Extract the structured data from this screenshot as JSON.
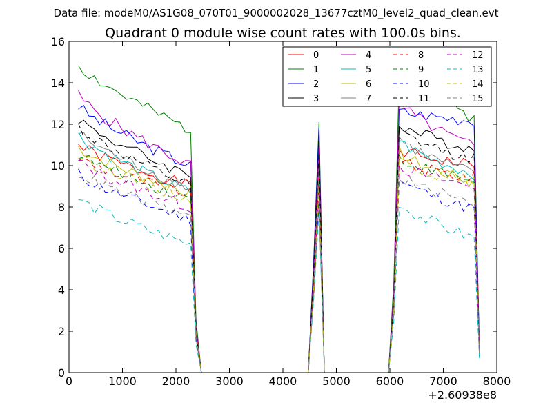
{
  "chart_data": {
    "type": "line",
    "suptitle": "Data file: modeM0/AS1G08_070T01_9000002028_13677cztM0_level2_quad_clean.evt",
    "title": "Quadrant 0 module wise count rates with 100.0s bins.",
    "xlabel": "",
    "ylabel": "",
    "xlim": [
      0,
      8000
    ],
    "ylim": [
      0,
      16
    ],
    "x_offset_label": "+2.60938e8",
    "xticks": [
      0,
      1000,
      2000,
      3000,
      4000,
      5000,
      6000,
      7000,
      8000
    ],
    "yticks": [
      0,
      2,
      4,
      6,
      8,
      10,
      12,
      14,
      16
    ],
    "legend_position": "top-right",
    "x": [
      175,
      275,
      375,
      475,
      575,
      675,
      775,
      875,
      975,
      1075,
      1175,
      1275,
      1375,
      1475,
      1575,
      1675,
      1775,
      1875,
      1975,
      2075,
      2175,
      2275,
      2375,
      2475,
      2575,
      2675,
      2775,
      2875,
      2975,
      3075,
      3175,
      3275,
      3375,
      3475,
      3575,
      3675,
      3775,
      3875,
      3975,
      4075,
      4175,
      4275,
      4375,
      4475,
      4575,
      4675,
      4775,
      4875,
      4975,
      5075,
      5175,
      5275,
      5375,
      5475,
      5575,
      5675,
      5775,
      5875,
      5975,
      6075,
      6175,
      6275,
      6375,
      6475,
      6575,
      6675,
      6775,
      6875,
      6975,
      7075,
      7175,
      7275,
      7375,
      7475,
      7575,
      7675
    ],
    "series": [
      {
        "name": "0",
        "color": "#ff0000",
        "dash": "solid",
        "start": 11.0,
        "end": 9.0,
        "end2": 10.0,
        "peak": 10.5
      },
      {
        "name": "1",
        "color": "#008000",
        "dash": "solid",
        "start": 14.9,
        "end": 11.7,
        "end2": 12.3,
        "peak": 12.1
      },
      {
        "name": "2",
        "color": "#0000ff",
        "dash": "solid",
        "start": 12.9,
        "end": 10.0,
        "end2": 12.2,
        "peak": 11.8
      },
      {
        "name": "3",
        "color": "#000000",
        "dash": "solid",
        "start": 12.3,
        "end": 9.5,
        "end2": 10.8,
        "peak": 11.2
      },
      {
        "name": "4",
        "color": "#bf00bf",
        "dash": "solid",
        "start": 13.4,
        "end": 10.0,
        "end2": 10.9,
        "peak": 10.9
      },
      {
        "name": "5",
        "color": "#00bfbf",
        "dash": "solid",
        "start": 11.5,
        "end": 8.7,
        "end2": 9.6,
        "peak": 9.9
      },
      {
        "name": "6",
        "color": "#bfbf00",
        "dash": "solid",
        "start": 10.9,
        "end": 8.7,
        "end2": 9.2,
        "peak": 9.6
      },
      {
        "name": "7",
        "color": "#808080",
        "dash": "solid",
        "start": 11.6,
        "end": 8.9,
        "end2": 9.6,
        "peak": 9.9
      },
      {
        "name": "8",
        "color": "#ff0000",
        "dash": "dashed",
        "start": 10.4,
        "end": 8.6,
        "end2": 9.4,
        "peak": 9.4
      },
      {
        "name": "9",
        "color": "#008000",
        "dash": "dashed",
        "start": 10.6,
        "end": 8.4,
        "end2": 9.3,
        "peak": 9.2
      },
      {
        "name": "10",
        "color": "#0000ff",
        "dash": "dashed",
        "start": 9.6,
        "end": 7.4,
        "end2": 7.9,
        "peak": 8.3
      },
      {
        "name": "11",
        "color": "#000000",
        "dash": "dashed",
        "start": 11.9,
        "end": 9.0,
        "end2": 10.3,
        "peak": 10.6
      },
      {
        "name": "12",
        "color": "#bf00bf",
        "dash": "dashed",
        "start": 10.2,
        "end": 8.0,
        "end2": 9.0,
        "peak": 9.0
      },
      {
        "name": "13",
        "color": "#00bfbf",
        "dash": "dashed",
        "start": 8.4,
        "end": 6.2,
        "end2": 6.5,
        "peak": 7.8
      },
      {
        "name": "14",
        "color": "#bfbf00",
        "dash": "dashed",
        "start": 10.5,
        "end": 8.4,
        "end2": 9.2,
        "peak": 9.0
      },
      {
        "name": "15",
        "color": "#808080",
        "dash": "dashed",
        "start": 9.7,
        "end": 7.5,
        "end2": 8.2,
        "peak": 8.2
      }
    ]
  }
}
